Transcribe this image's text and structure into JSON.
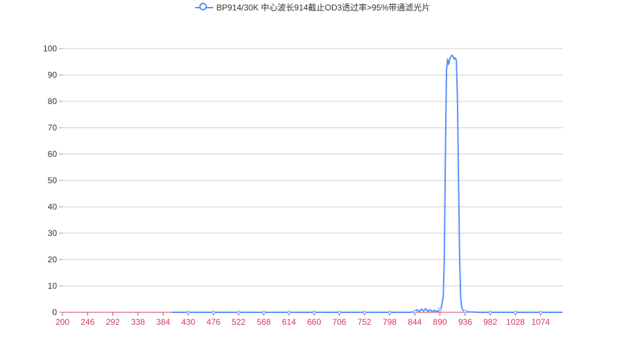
{
  "chart_data": {
    "type": "line",
    "legend": {
      "placement": "top-center"
    },
    "grid": true,
    "x_ticks": [
      "200",
      "246",
      "292",
      "338",
      "384",
      "430",
      "476",
      "522",
      "568",
      "614",
      "660",
      "706",
      "752",
      "798",
      "844",
      "890",
      "936",
      "982",
      "1028",
      "1074"
    ],
    "y_ticks": [
      "0",
      "10",
      "20",
      "30",
      "40",
      "50",
      "60",
      "70",
      "80",
      "90",
      "100"
    ],
    "xlim": [
      200,
      1114
    ],
    "ylim": [
      0,
      100
    ],
    "colors": {
      "series": "#5b8ff9",
      "x_axis_labels": "#d23c5a",
      "x_axis_line": "#d23c5a",
      "grid": "#cccccc"
    },
    "series": [
      {
        "name": "BP914/30K 中心波长914截止OD3透过率>95%带通滤光片",
        "x": [
          400,
          430,
          476,
          522,
          568,
          614,
          660,
          706,
          752,
          798,
          835,
          844,
          848,
          852,
          856,
          860,
          864,
          868,
          872,
          876,
          880,
          884,
          888,
          892,
          896,
          898,
          900,
          902,
          904,
          906,
          908,
          910,
          912,
          914,
          916,
          918,
          920,
          922,
          924,
          926,
          928,
          930,
          932,
          934,
          936,
          940,
          945,
          950,
          960,
          982,
          1028,
          1074,
          1114
        ],
        "y": [
          0,
          0,
          0,
          0,
          0,
          0,
          0,
          0,
          0,
          0,
          0,
          0.2,
          1,
          0.3,
          1.2,
          0.5,
          1.4,
          0.3,
          1,
          0.2,
          0.8,
          0.3,
          0.6,
          1.5,
          6,
          20,
          60,
          92,
          96,
          94,
          96,
          97,
          97.5,
          97,
          96,
          96.5,
          95.5,
          80,
          50,
          20,
          5,
          1.5,
          0.8,
          0.5,
          0.3,
          0.2,
          0.1,
          0.1,
          0,
          0,
          0,
          0,
          0
        ],
        "markers_x": [
          430,
          476,
          522,
          568,
          614,
          660,
          706,
          752,
          798,
          844,
          890,
          936,
          982,
          1028,
          1074
        ]
      }
    ]
  }
}
